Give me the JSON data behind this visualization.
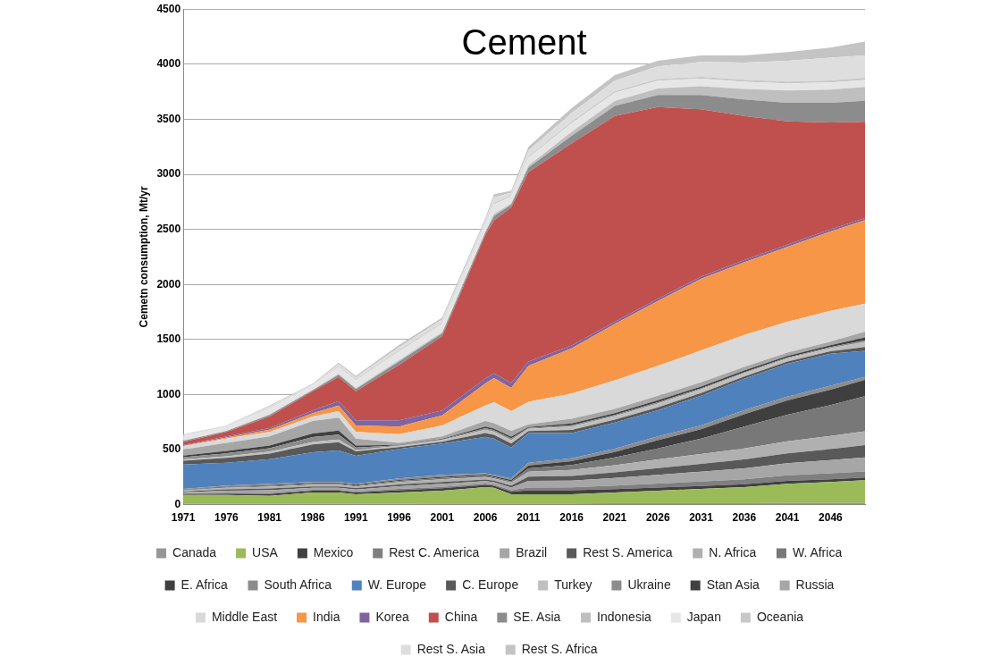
{
  "chart_data": {
    "type": "area",
    "title": "Cement",
    "ylabel": "Cemetn consumption, Mt/yr",
    "stacked": true,
    "grid": "y",
    "legend": "bottom",
    "marker": "none",
    "x": [
      1971,
      1976,
      1981,
      1986,
      1989,
      1991,
      1996,
      2001,
      2006,
      2007,
      2009,
      2011,
      2016,
      2021,
      2026,
      2031,
      2036,
      2041,
      2046,
      2050
    ],
    "xlim": [
      1971,
      2050
    ],
    "xticks": [
      1971,
      1976,
      1981,
      1986,
      1991,
      1996,
      2001,
      2006,
      2011,
      2016,
      2021,
      2026,
      2031,
      2036,
      2041,
      2046
    ],
    "ylim": [
      0,
      4500
    ],
    "yticks": [
      0,
      500,
      1000,
      1500,
      2000,
      2500,
      3000,
      3500,
      4000,
      4500
    ],
    "series": [
      {
        "name": "Canada",
        "color": "#969696",
        "values": [
          8,
          8,
          8,
          9,
          9,
          9,
          9,
          10,
          11,
          11,
          10,
          10,
          11,
          12,
          13,
          13,
          14,
          15,
          15,
          16
        ]
      },
      {
        "name": "USA",
        "color": "#9bbb59",
        "values": [
          81,
          81,
          72,
          102,
          102,
          86,
          102,
          117,
          148,
          141,
          85,
          85,
          84,
          99,
          114,
          130,
          145,
          175,
          191,
          206
        ]
      },
      {
        "name": "Mexico",
        "color": "#404040",
        "values": [
          8,
          12,
          16,
          15,
          15,
          15,
          20,
          22,
          20,
          19,
          22,
          35,
          35,
          30,
          28,
          27,
          26,
          26,
          25,
          25
        ]
      },
      {
        "name": "Rest C. America",
        "color": "#7f7f7f",
        "values": [
          5,
          8,
          10,
          9,
          9,
          9,
          12,
          13,
          12,
          11,
          13,
          25,
          28,
          32,
          36,
          40,
          45,
          50,
          53,
          55
        ]
      },
      {
        "name": "Brazil",
        "color": "#a6a6a6",
        "values": [
          10,
          18,
          25,
          18,
          18,
          18,
          25,
          27,
          22,
          21,
          26,
          60,
          60,
          70,
          80,
          90,
          100,
          110,
          120,
          127
        ]
      },
      {
        "name": "Rest S. America",
        "color": "#595959",
        "values": [
          8,
          12,
          15,
          13,
          13,
          13,
          16,
          17,
          15,
          14,
          17,
          40,
          42,
          50,
          60,
          70,
          80,
          90,
          100,
          111
        ]
      },
      {
        "name": "N. Africa",
        "color": "#b0b0b0",
        "values": [
          8,
          13,
          17,
          16,
          16,
          16,
          22,
          25,
          23,
          22,
          26,
          45,
          55,
          65,
          80,
          90,
          100,
          110,
          120,
          127
        ]
      },
      {
        "name": "W. Africa",
        "color": "#787878",
        "values": [
          4,
          6,
          8,
          8,
          8,
          8,
          10,
          12,
          11,
          10,
          13,
          30,
          45,
          70,
          100,
          140,
          200,
          240,
          280,
          317
        ]
      },
      {
        "name": "E. Africa",
        "color": "#3f3f3f",
        "values": [
          3,
          5,
          7,
          7,
          7,
          7,
          9,
          10,
          10,
          9,
          12,
          25,
          35,
          50,
          75,
          85,
          110,
          130,
          140,
          150
        ]
      },
      {
        "name": "South Africa",
        "color": "#8c8c8c",
        "values": [
          8,
          11,
          12,
          9,
          9,
          9,
          13,
          17,
          13,
          12,
          14,
          25,
          25,
          30,
          33,
          35,
          37,
          34,
          36,
          25
        ]
      },
      {
        "name": "W. Europe",
        "color": "#4f81bd",
        "values": [
          222,
          206,
          222,
          270,
          286,
          254,
          269,
          285,
          330,
          330,
          280,
          270,
          230,
          238,
          238,
          270,
          286,
          300,
          290,
          238
        ]
      },
      {
        "name": "C. Europe",
        "color": "#595959",
        "values": [
          34,
          45,
          52,
          71,
          75,
          39,
          15,
          17,
          35,
          34,
          36,
          18,
          28,
          26,
          27,
          24,
          21,
          20,
          22,
          35
        ]
      },
      {
        "name": "Turkey",
        "color": "#bfbfbf",
        "values": [
          11,
          14,
          17,
          23,
          24,
          12,
          12,
          15,
          30,
          29,
          32,
          20,
          32,
          32,
          35,
          33,
          30,
          28,
          30,
          47
        ]
      },
      {
        "name": "Ukraine",
        "color": "#8c8c8c",
        "values": [
          20,
          27,
          31,
          43,
          45,
          23,
          5,
          5,
          15,
          14,
          15,
          8,
          12,
          11,
          12,
          10,
          9,
          8,
          9,
          14
        ]
      },
      {
        "name": "Stan Asia",
        "color": "#404040",
        "values": [
          16,
          22,
          25,
          34,
          36,
          19,
          4,
          5,
          15,
          14,
          17,
          8,
          15,
          15,
          17,
          16,
          15,
          14,
          16,
          26
        ]
      },
      {
        "name": "Russia",
        "color": "#a6a6a6",
        "values": [
          54,
          72,
          83,
          113,
          118,
          63,
          17,
          23,
          50,
          49,
          52,
          26,
          43,
          40,
          42,
          37,
          32,
          30,
          33,
          52
        ]
      },
      {
        "name": "Middle East",
        "color": "#d9d9d9",
        "values": [
          30,
          40,
          40,
          40,
          60,
          60,
          80,
          100,
          140,
          190,
          180,
          205,
          230,
          260,
          270,
          290,
          290,
          280,
          280,
          254
        ]
      },
      {
        "name": "India",
        "color": "#f79646",
        "values": [
          5,
          10,
          20,
          30,
          50,
          60,
          70,
          90,
          200,
          220,
          210,
          325,
          410,
          510,
          590,
          650,
          660,
          680,
          720,
          758
        ]
      },
      {
        "name": "Korea",
        "color": "#8064a2",
        "values": [
          5,
          10,
          15,
          25,
          40,
          45,
          55,
          45,
          45,
          45,
          45,
          40,
          25,
          20,
          20,
          20,
          20,
          20,
          20,
          20
        ]
      },
      {
        "name": "China",
        "color": "#c0504d",
        "values": [
          30,
          40,
          105,
          175,
          220,
          265,
          505,
          675,
          1305,
          1385,
          1595,
          1720,
          1835,
          1870,
          1740,
          1520,
          1310,
          1120,
          970,
          873
        ]
      },
      {
        "name": "SE. Asia",
        "color": "#8c8c8c",
        "values": [
          10,
          8,
          15,
          10,
          20,
          20,
          30,
          25,
          20,
          40,
          25,
          40,
          70,
          90,
          110,
          130,
          150,
          170,
          180,
          191
        ]
      },
      {
        "name": "Indonesia",
        "color": "#bfbfbf",
        "values": [
          3,
          3,
          6,
          4,
          8,
          9,
          12,
          12,
          10,
          18,
          12,
          20,
          35,
          45,
          60,
          80,
          95,
          110,
          120,
          127
        ]
      },
      {
        "name": "Japan",
        "color": "#e6e6e6",
        "values": [
          45,
          38,
          55,
          40,
          65,
          70,
          80,
          75,
          65,
          90,
          60,
          70,
          80,
          75,
          70,
          68,
          66,
          65,
          64,
          63
        ]
      },
      {
        "name": "Oceania",
        "color": "#c8c8c8",
        "values": [
          5,
          4,
          6,
          5,
          8,
          8,
          10,
          10,
          8,
          12,
          8,
          10,
          12,
          14,
          15,
          16,
          17,
          18,
          19,
          20
        ]
      },
      {
        "name": "Rest S. Asia",
        "color": "#dedede",
        "values": [
          4,
          4,
          10,
          6,
          16,
          18,
          28,
          28,
          27,
          50,
          27,
          55,
          78,
          96,
          115,
          136,
          157,
          187,
          207,
          203
        ]
      },
      {
        "name": "Rest S. Africa",
        "color": "#c4c4c4",
        "values": [
          3,
          3,
          8,
          5,
          13,
          15,
          20,
          20,
          20,
          30,
          18,
          35,
          45,
          50,
          50,
          60,
          65,
          80,
          90,
          126
        ]
      }
    ]
  }
}
